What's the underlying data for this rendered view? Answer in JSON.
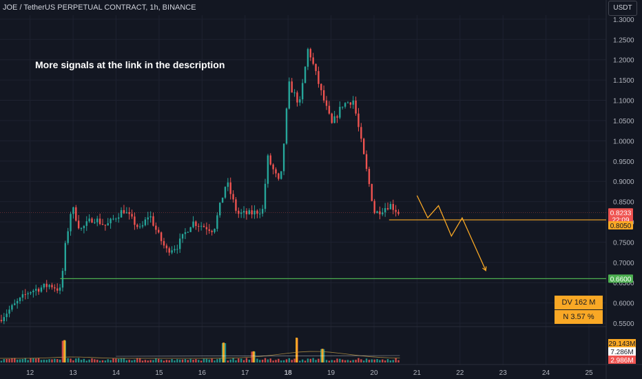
{
  "header": {
    "symbol_line": "JOE / TetherUS PERPETUAL CONTRACT, 1h, BINANCE"
  },
  "currency_button": "USDT",
  "annotation": "More signals at the link in the description",
  "stats": {
    "dv": "DV 162 M",
    "n": "N 3.57 %"
  },
  "colors": {
    "background": "#131722",
    "up": "#26a69a",
    "down": "#ef5350",
    "resistance": "#f9a825",
    "support": "#4caf50",
    "projection": "#f9a825",
    "grid": "#1e2230"
  },
  "chart_data": {
    "type": "candlestick",
    "y_axis": {
      "range": [
        0.545,
        1.31
      ],
      "ticks": [
        "1.3000",
        "1.2500",
        "1.2000",
        "1.1500",
        "1.1000",
        "1.0500",
        "1.0000",
        "0.9500",
        "0.9000",
        "0.8500",
        "0.8000",
        "0.7500",
        "0.7000",
        "0.6500",
        "0.6000",
        "0.5500"
      ]
    },
    "x_axis": {
      "range": [
        11.3,
        25.4
      ],
      "ticks": [
        "12",
        "13",
        "14",
        "15",
        "16",
        "17",
        "18",
        "19",
        "20",
        "21",
        "22",
        "23",
        "24",
        "25"
      ],
      "bold_tick": "18"
    },
    "path": [
      [
        11.3,
        0.558
      ],
      [
        12.0,
        0.628
      ],
      [
        12.5,
        0.645
      ],
      [
        12.75,
        0.63
      ],
      [
        12.82,
        0.72
      ],
      [
        13.0,
        0.84
      ],
      [
        13.2,
        0.78
      ],
      [
        13.5,
        0.81
      ],
      [
        13.8,
        0.79
      ],
      [
        14.2,
        0.83
      ],
      [
        14.6,
        0.78
      ],
      [
        14.8,
        0.82
      ],
      [
        15.0,
        0.77
      ],
      [
        15.2,
        0.73
      ],
      [
        15.45,
        0.74
      ],
      [
        15.8,
        0.8
      ],
      [
        16.3,
        0.78
      ],
      [
        16.6,
        0.9
      ],
      [
        16.85,
        0.82
      ],
      [
        17.15,
        0.82
      ],
      [
        17.45,
        0.83
      ],
      [
        17.55,
        0.96
      ],
      [
        17.85,
        0.89
      ],
      [
        18.05,
        1.14
      ],
      [
        18.3,
        1.09
      ],
      [
        18.5,
        1.23
      ],
      [
        18.8,
        1.12
      ],
      [
        19.05,
        1.04
      ],
      [
        19.3,
        1.09
      ],
      [
        19.55,
        1.1
      ],
      [
        19.85,
        0.93
      ],
      [
        20.05,
        0.82
      ],
      [
        20.4,
        0.843
      ],
      [
        20.6,
        0.823
      ]
    ],
    "candle_count": 150,
    "last_price": "0.8233",
    "countdown": "22:09",
    "levels": [
      {
        "name": "resistance",
        "price": 0.805,
        "label": "0.8050",
        "from_x": 20.35
      },
      {
        "name": "support",
        "price": 0.66,
        "label": "0.6600",
        "from_x": 12.7
      }
    ],
    "projection": [
      [
        21.0,
        0.865
      ],
      [
        21.25,
        0.81
      ],
      [
        21.5,
        0.84
      ],
      [
        21.8,
        0.765
      ],
      [
        22.05,
        0.81
      ],
      [
        22.6,
        0.68
      ]
    ],
    "volume": {
      "labels": [
        "29.143M",
        "7.286M",
        "2.986M"
      ],
      "spikes": [
        [
          12.8,
          0.9
        ],
        [
          16.5,
          0.8
        ],
        [
          17.2,
          0.45
        ],
        [
          18.2,
          1.0
        ],
        [
          18.8,
          0.55
        ]
      ]
    }
  }
}
